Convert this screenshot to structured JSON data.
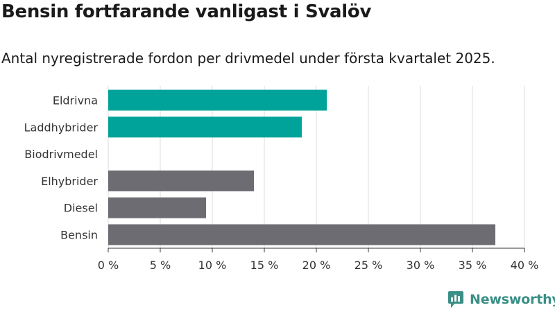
{
  "title": "Bensin fortfarande vanligast i Svalöv",
  "subtitle": "Antal nyregistrerade fordon per drivmedel under första kvartalet 2025.",
  "brand": "Newsworthy",
  "colors": {
    "highlight": "#00a39a",
    "default": "#6d6c72",
    "grid": "#dddddd",
    "text": "#333333",
    "brand": "#3a8f86"
  },
  "chart_data": {
    "type": "bar",
    "orientation": "horizontal",
    "categories": [
      "Eldrivna",
      "Laddhybrider",
      "Biodrivmedel",
      "Elhybrider",
      "Diesel",
      "Bensin"
    ],
    "values": [
      21,
      18.6,
      0,
      14,
      9.4,
      37.2
    ],
    "highlighted": [
      true,
      true,
      false,
      false,
      false,
      false
    ],
    "xlim": [
      0,
      40
    ],
    "xticks": [
      0,
      5,
      10,
      15,
      20,
      25,
      30,
      35,
      40
    ],
    "tick_labels": [
      "0 %",
      "5 %",
      "10 %",
      "15 %",
      "20 %",
      "25 %",
      "30 %",
      "35 %",
      "40 %"
    ],
    "grid": true
  }
}
